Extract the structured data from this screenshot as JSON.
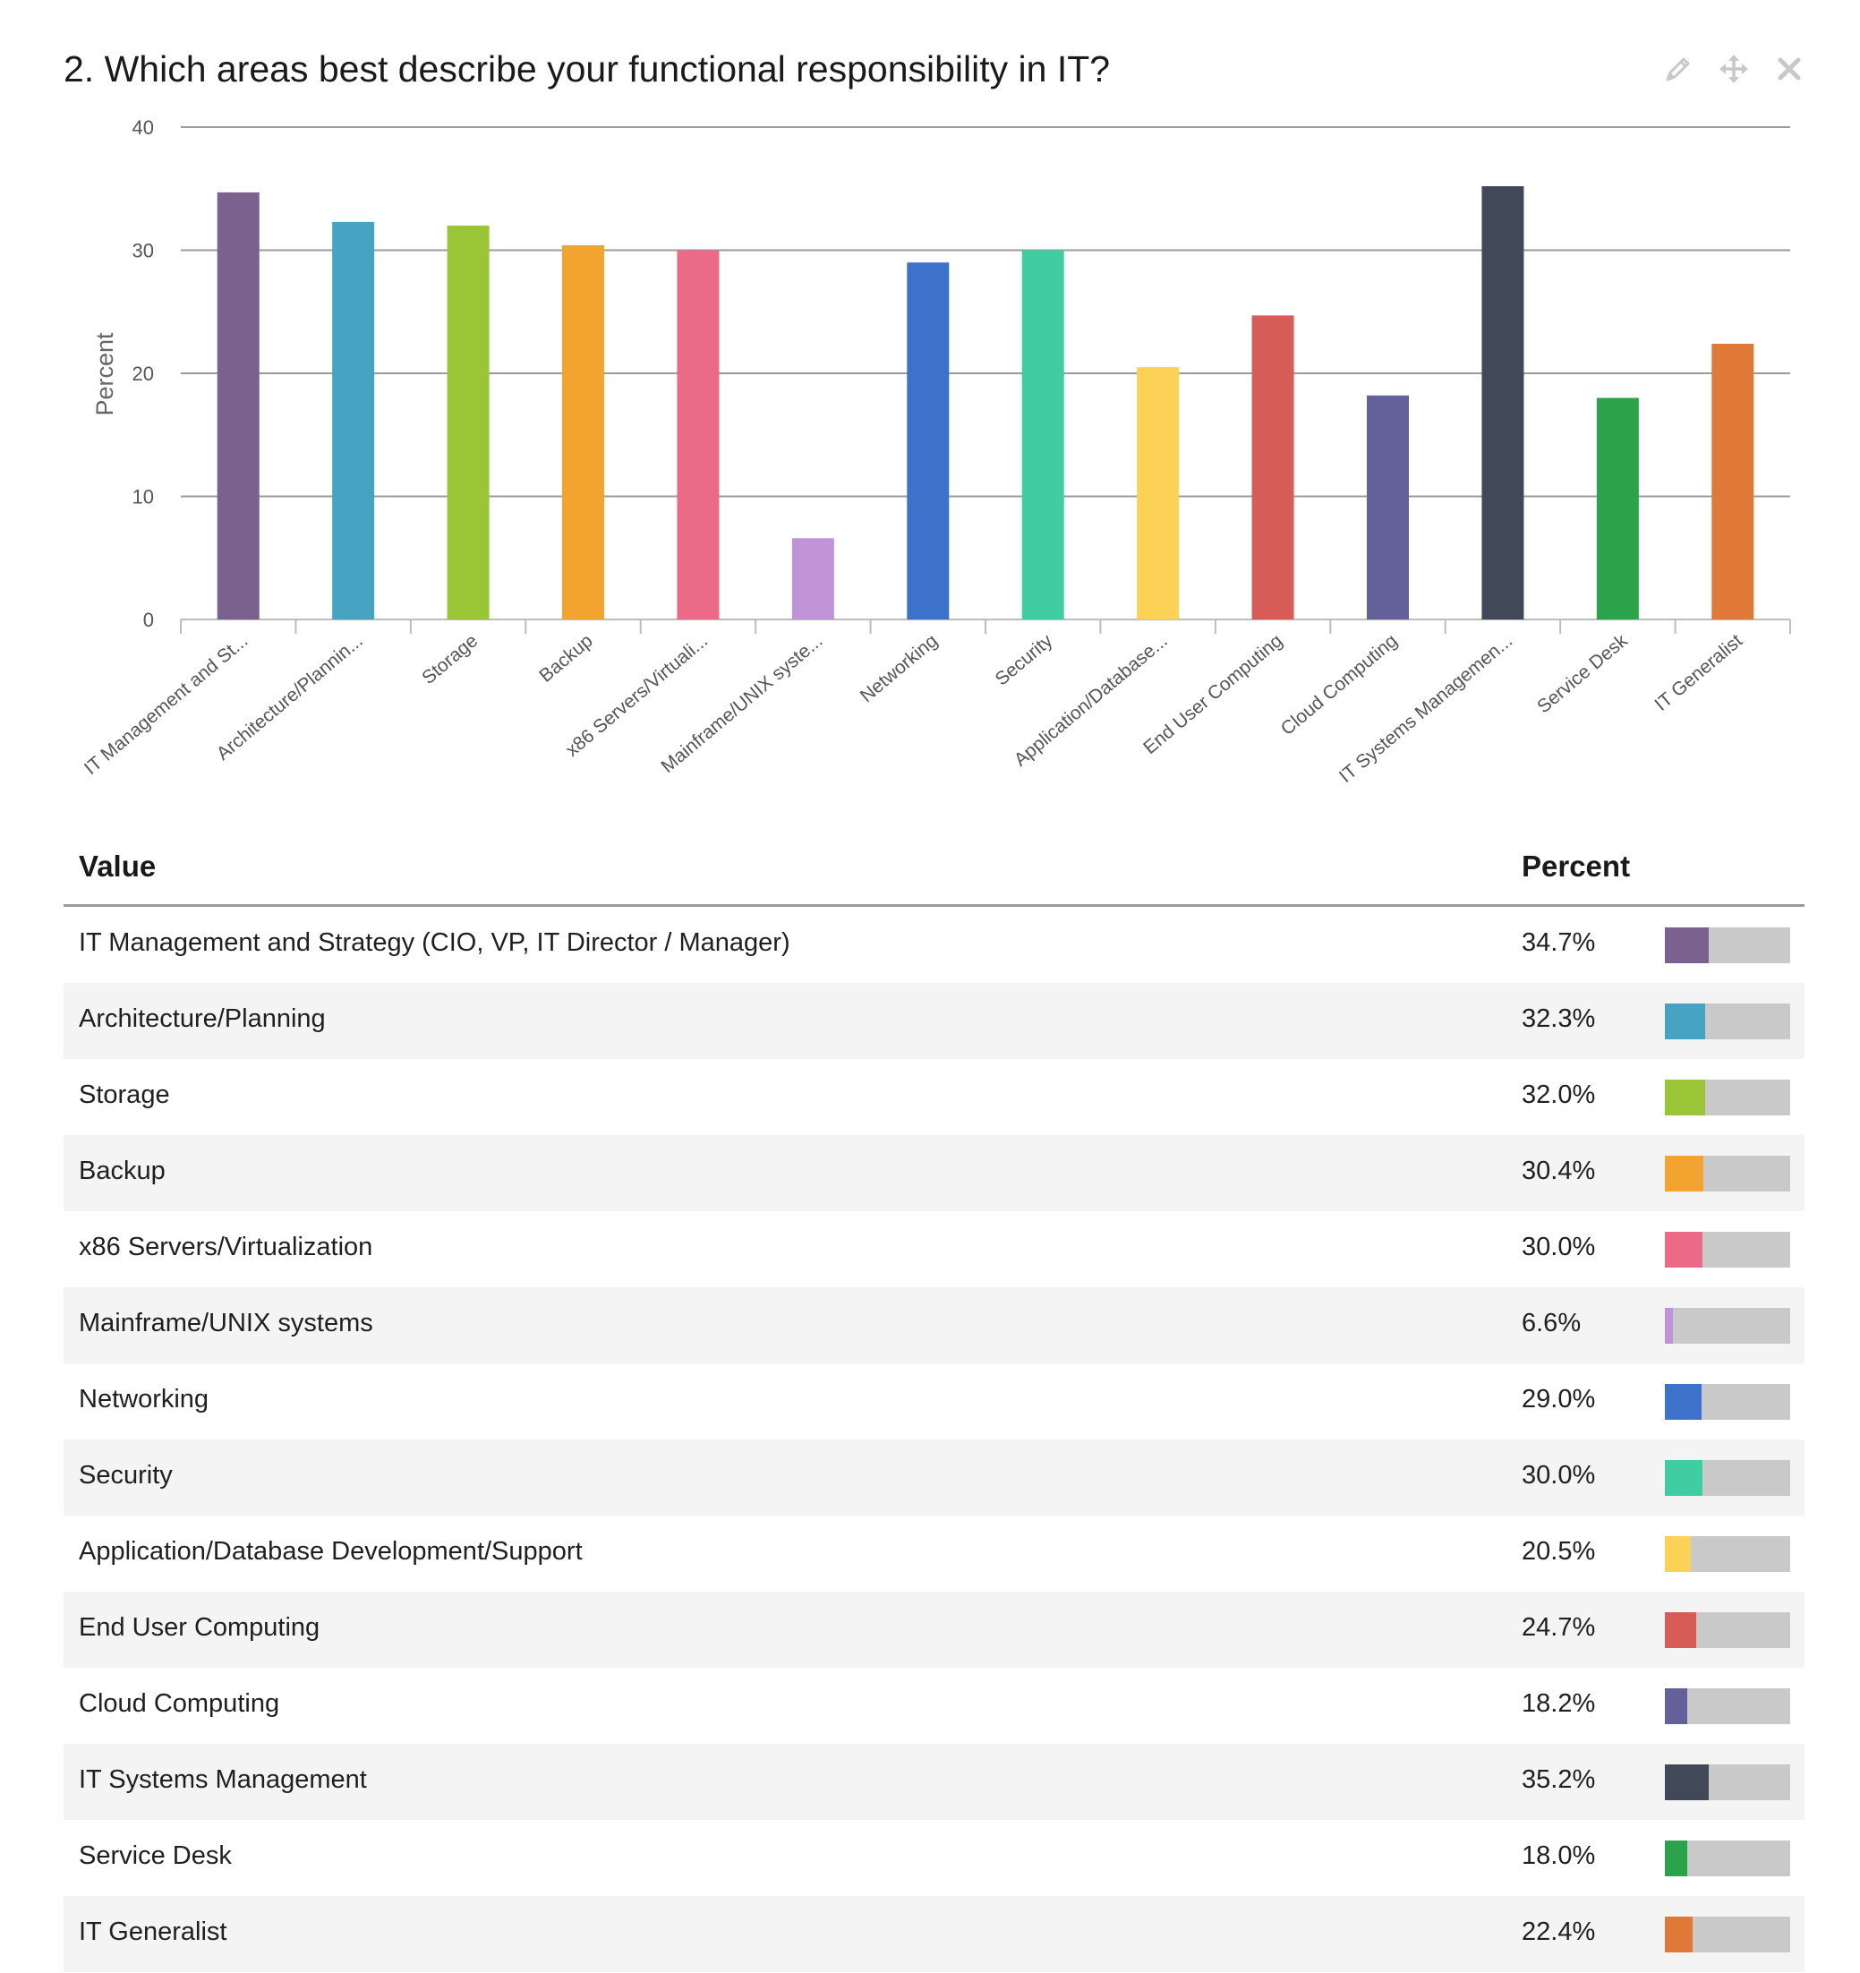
{
  "question": {
    "title": "2. Which areas best describe your functional responsibility in IT?"
  },
  "tools": [
    "pencil-icon",
    "move-icon",
    "close-icon"
  ],
  "table": {
    "header_value": "Value",
    "header_percent": "Percent",
    "rows": [
      {
        "label": "IT Management and Strategy (CIO, VP, IT Director / Manager)",
        "percent": "34.7%",
        "value": 34.7,
        "color": "#7b618e"
      },
      {
        "label": "Architecture/Planning",
        "percent": "32.3%",
        "value": 32.3,
        "color": "#47a3c2"
      },
      {
        "label": "Storage",
        "percent": "32.0%",
        "value": 32.0,
        "color": "#9ac536"
      },
      {
        "label": "Backup",
        "percent": "30.4%",
        "value": 30.4,
        "color": "#f2a330"
      },
      {
        "label": "x86 Servers/Virtualization",
        "percent": "30.0%",
        "value": 30.0,
        "color": "#eb6a87"
      },
      {
        "label": "Mainframe/UNIX systems",
        "percent": "6.6%",
        "value": 6.6,
        "color": "#c093d9"
      },
      {
        "label": "Networking",
        "percent": "29.0%",
        "value": 29.0,
        "color": "#3d72cb"
      },
      {
        "label": "Security",
        "percent": "30.0%",
        "value": 30.0,
        "color": "#40cda2"
      },
      {
        "label": "Application/Database Development/Support",
        "percent": "20.5%",
        "value": 20.5,
        "color": "#fbd256"
      },
      {
        "label": "End User Computing",
        "percent": "24.7%",
        "value": 24.7,
        "color": "#d75b56"
      },
      {
        "label": "Cloud Computing",
        "percent": "18.2%",
        "value": 18.2,
        "color": "#646099"
      },
      {
        "label": "IT Systems Management",
        "percent": "35.2%",
        "value": 35.2,
        "color": "#414858"
      },
      {
        "label": "Service Desk",
        "percent": "18.0%",
        "value": 18.0,
        "color": "#2ba34a"
      },
      {
        "label": "IT Generalist",
        "percent": "22.4%",
        "value": 22.4,
        "color": "#e07838"
      }
    ]
  },
  "chart_data": {
    "type": "bar",
    "ylabel": "Percent",
    "xlabel": "",
    "ylim": [
      0,
      40
    ],
    "yticks": [
      "0",
      "10",
      "20",
      "30",
      "40"
    ],
    "grid": true,
    "categories": [
      "IT Management and St...",
      "Architecture/Plannin...",
      "Storage",
      "Backup",
      "x86 Servers/Virtuali...",
      "Mainframe/UNIX syste...",
      "Networking",
      "Security",
      "Application/Database...",
      "End User Computing",
      "Cloud Computing",
      "IT Systems Managemen...",
      "Service Desk",
      "IT Generalist"
    ],
    "values": [
      34.7,
      32.3,
      32.0,
      30.4,
      30.0,
      6.6,
      29.0,
      30.0,
      20.5,
      24.7,
      18.2,
      35.2,
      18.0,
      22.4
    ],
    "colors": [
      "#7b618e",
      "#47a3c2",
      "#9ac536",
      "#f2a330",
      "#eb6a87",
      "#c093d9",
      "#3d72cb",
      "#40cda2",
      "#fbd256",
      "#d75b56",
      "#646099",
      "#414858",
      "#2ba34a",
      "#e07838"
    ]
  }
}
